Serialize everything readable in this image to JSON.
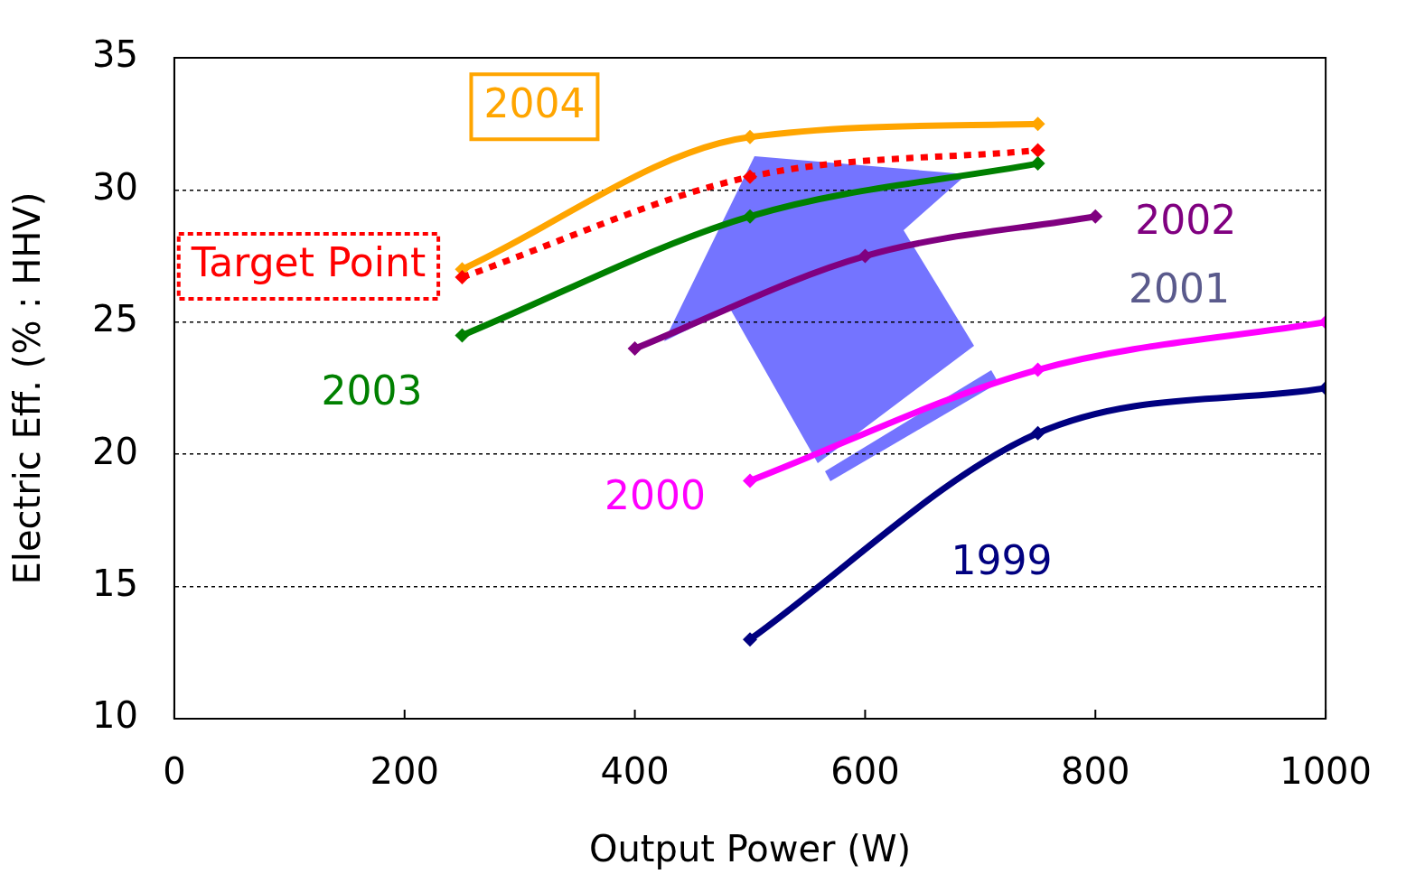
{
  "chart_data": {
    "type": "line",
    "xlabel": "Output Power (W)",
    "ylabel": "Electric Eff. (% : HHV)",
    "xlim": [
      0,
      1000
    ],
    "xticks": [
      0,
      200,
      400,
      600,
      800,
      1000
    ],
    "ylim": [
      10,
      35
    ],
    "yticks": [
      10,
      15,
      20,
      25,
      30,
      35
    ],
    "grid": "y",
    "legend": false,
    "marker": "diamond",
    "series": [
      {
        "name": "1999",
        "color": "#000080",
        "x": [
          500,
          750,
          1000
        ],
        "values": [
          13,
          20.8,
          22.5
        ]
      },
      {
        "name": "2000",
        "color": "#ff00ff",
        "x": [
          500,
          750,
          1000
        ],
        "values": [
          19,
          23.2,
          25
        ]
      },
      {
        "name": "2002",
        "color": "#800080",
        "x": [
          400,
          600,
          800
        ],
        "values": [
          24,
          27.5,
          29
        ]
      },
      {
        "name": "2003",
        "color": "#008000",
        "x": [
          250,
          500,
          750
        ],
        "values": [
          24.5,
          29,
          31
        ]
      },
      {
        "name": "Target Point",
        "color": "#ff0000",
        "line_style": "dotted",
        "x": [
          250,
          500,
          750
        ],
        "values": [
          26.7,
          30.5,
          31.5
        ]
      },
      {
        "name": "2004",
        "color": "#ffa500",
        "x": [
          250,
          500,
          750
        ],
        "values": [
          27,
          32,
          32.5
        ]
      }
    ],
    "annotations": [
      "2001"
    ]
  }
}
